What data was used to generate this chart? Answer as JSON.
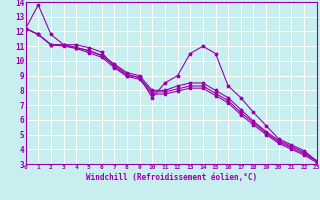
{
  "xlabel": "Windchill (Refroidissement éolien,°C)",
  "ylabel": "",
  "xlim": [
    0,
    23
  ],
  "ylim": [
    3,
    14
  ],
  "xticks": [
    0,
    1,
    2,
    3,
    4,
    5,
    6,
    7,
    8,
    9,
    10,
    11,
    12,
    13,
    14,
    15,
    16,
    17,
    18,
    19,
    20,
    21,
    22,
    23
  ],
  "yticks": [
    3,
    4,
    5,
    6,
    7,
    8,
    9,
    10,
    11,
    12,
    13,
    14
  ],
  "bg_color": "#c8eef0",
  "line_color": "#9900aa",
  "grid_color": "#ffffff",
  "line1_x": [
    0,
    1,
    2,
    3,
    4,
    5,
    6,
    7,
    8,
    9,
    10,
    11,
    12,
    13,
    14,
    15,
    16,
    17,
    18,
    19,
    20,
    21,
    22,
    23
  ],
  "line1_y": [
    12.2,
    13.8,
    11.8,
    11.1,
    11.1,
    10.9,
    10.6,
    9.6,
    9.0,
    8.9,
    7.5,
    8.5,
    9.0,
    10.5,
    11.0,
    10.5,
    8.3,
    7.5,
    6.5,
    5.6,
    4.7,
    4.3,
    3.9,
    3.2
  ],
  "line2_x": [
    0,
    1,
    2,
    3,
    4,
    5,
    6,
    7,
    8,
    9,
    10,
    11,
    12,
    13,
    14,
    15,
    16,
    17,
    18,
    19,
    20,
    21,
    22,
    23
  ],
  "line2_y": [
    12.2,
    11.8,
    11.1,
    11.1,
    10.9,
    10.7,
    10.4,
    9.8,
    9.2,
    9.0,
    8.0,
    8.0,
    8.3,
    8.5,
    8.5,
    8.0,
    7.5,
    6.7,
    5.9,
    5.2,
    4.6,
    4.2,
    3.8,
    3.2
  ],
  "line3_x": [
    0,
    1,
    2,
    3,
    4,
    5,
    6,
    7,
    8,
    9,
    10,
    11,
    12,
    13,
    14,
    15,
    16,
    17,
    18,
    19,
    20,
    21,
    22,
    23
  ],
  "line3_y": [
    12.2,
    11.8,
    11.1,
    11.1,
    10.9,
    10.7,
    10.35,
    9.7,
    9.1,
    8.85,
    7.9,
    7.9,
    8.1,
    8.3,
    8.3,
    7.8,
    7.3,
    6.5,
    5.8,
    5.1,
    4.5,
    4.1,
    3.7,
    3.2
  ],
  "line4_x": [
    0,
    1,
    2,
    3,
    4,
    5,
    6,
    7,
    8,
    9,
    10,
    11,
    12,
    13,
    14,
    15,
    16,
    17,
    18,
    19,
    20,
    21,
    22,
    23
  ],
  "line4_y": [
    12.2,
    11.8,
    11.1,
    11.0,
    10.85,
    10.55,
    10.25,
    9.55,
    8.95,
    8.75,
    7.75,
    7.75,
    7.95,
    8.15,
    8.15,
    7.65,
    7.15,
    6.35,
    5.65,
    5.0,
    4.4,
    4.0,
    3.6,
    3.1
  ],
  "xlabel_fontsize": 5.5,
  "tick_fontsize_x": 4.5,
  "tick_fontsize_y": 5.5
}
